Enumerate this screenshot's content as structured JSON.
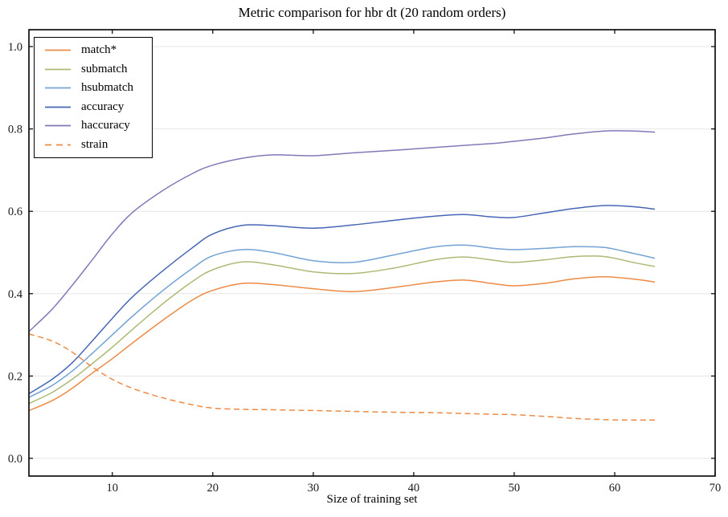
{
  "figure": {
    "title": "Metric comparison for hbr dt (20 random orders)",
    "xlabel": "Size of training set"
  },
  "colors": {
    "background": "#ffffff",
    "grid": "#e6e6e6",
    "spine": "#000000",
    "tick_text": "#1a1a1a"
  },
  "chart_data": {
    "type": "line",
    "title": "Metric comparison for hbr dt (20 random orders)",
    "xlabel": "Size of training set",
    "ylabel": "",
    "grid": "horizontal-only",
    "legend_position": "upper-left",
    "xlim": [
      1.7,
      70
    ],
    "ylim": [
      -0.043,
      1.041
    ],
    "xticks": [
      10,
      20,
      30,
      40,
      50,
      60,
      70
    ],
    "xtick_labels": [
      "10",
      "20",
      "30",
      "40",
      "50",
      "60",
      "70"
    ],
    "yticks": [
      0.0,
      0.2,
      0.4,
      0.6,
      0.8,
      1.0
    ],
    "ytick_labels": [
      "0.0",
      "0.2",
      "0.4",
      "0.6",
      "0.8",
      "1.0"
    ],
    "x": [
      1.7,
      4,
      6,
      8,
      10,
      12,
      15,
      18,
      20,
      23,
      26,
      30,
      34,
      38,
      42,
      45,
      48,
      50,
      53,
      56,
      59,
      62,
      64
    ],
    "series": [
      {
        "name": "match*",
        "color": "#ee8a44",
        "dash": "solid",
        "values": [
          0.116,
          0.14,
          0.17,
          0.207,
          0.242,
          0.28,
          0.335,
          0.385,
          0.408,
          0.425,
          0.422,
          0.412,
          0.405,
          0.415,
          0.428,
          0.433,
          0.424,
          0.419,
          0.425,
          0.436,
          0.441,
          0.435,
          0.428
        ]
      },
      {
        "name": "submatch",
        "color": "#abba74",
        "dash": "solid",
        "values": [
          0.133,
          0.16,
          0.192,
          0.23,
          0.27,
          0.313,
          0.375,
          0.43,
          0.458,
          0.477,
          0.47,
          0.453,
          0.449,
          0.462,
          0.482,
          0.489,
          0.481,
          0.476,
          0.482,
          0.49,
          0.49,
          0.475,
          0.466
        ]
      },
      {
        "name": "hsubmatch",
        "color": "#72a3d4",
        "dash": "solid",
        "values": [
          0.148,
          0.177,
          0.212,
          0.255,
          0.3,
          0.345,
          0.407,
          0.462,
          0.492,
          0.507,
          0.5,
          0.48,
          0.476,
          0.494,
          0.513,
          0.518,
          0.51,
          0.507,
          0.51,
          0.514,
          0.512,
          0.497,
          0.486
        ]
      },
      {
        "name": "accuracy",
        "color": "#4766b6",
        "dash": "solid",
        "values": [
          0.157,
          0.192,
          0.232,
          0.285,
          0.34,
          0.392,
          0.455,
          0.512,
          0.545,
          0.566,
          0.565,
          0.559,
          0.567,
          0.578,
          0.588,
          0.592,
          0.586,
          0.585,
          0.596,
          0.607,
          0.614,
          0.611,
          0.605
        ]
      },
      {
        "name": "haccuracy",
        "color": "#8478b8",
        "dash": "solid",
        "values": [
          0.308,
          0.362,
          0.42,
          0.482,
          0.545,
          0.597,
          0.65,
          0.692,
          0.712,
          0.729,
          0.737,
          0.735,
          0.742,
          0.748,
          0.755,
          0.76,
          0.765,
          0.77,
          0.778,
          0.788,
          0.795,
          0.795,
          0.792
        ]
      },
      {
        "name": "strain",
        "color": "#ee8a44",
        "dash": "dashed",
        "values": [
          0.302,
          0.285,
          0.258,
          0.222,
          0.192,
          0.17,
          0.147,
          0.13,
          0.122,
          0.119,
          0.118,
          0.116,
          0.114,
          0.112,
          0.111,
          0.109,
          0.107,
          0.106,
          0.102,
          0.097,
          0.094,
          0.093,
          0.093
        ]
      }
    ]
  }
}
